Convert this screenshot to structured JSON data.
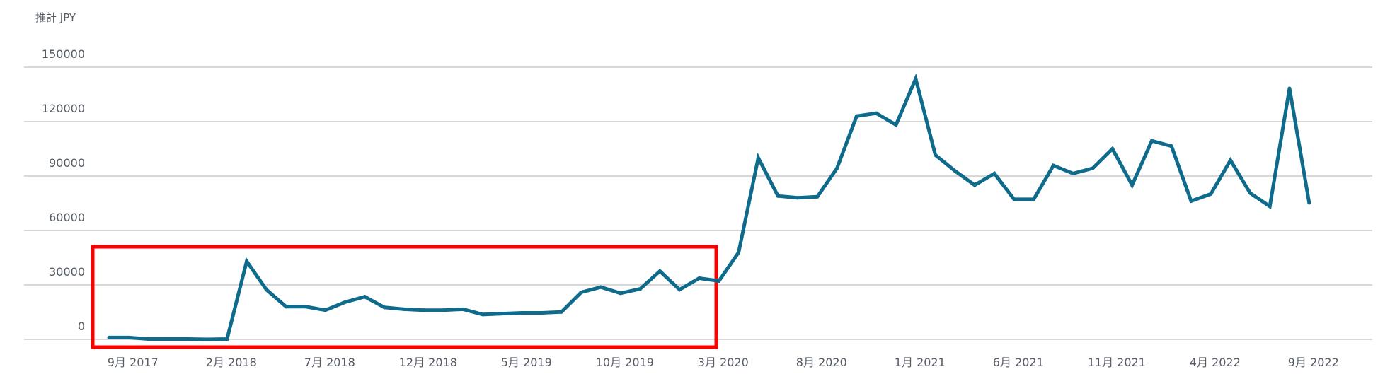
{
  "chart_data": {
    "type": "line",
    "title": "",
    "ylabel": "推計 JPY",
    "xlabel": "",
    "ylim": [
      0,
      150000
    ],
    "yticks": [
      0,
      30000,
      60000,
      90000,
      120000,
      150000
    ],
    "ytick_labels": [
      "0",
      "30000",
      "60000",
      "90000",
      "120000",
      "150000"
    ],
    "grid": "horizontal",
    "x_start": "2017-08",
    "x_tick_labels": [
      "9月 2017",
      "2月 2018",
      "7月 2018",
      "12月 2018",
      "5月 2019",
      "10月 2019",
      "3月 2020",
      "8月 2020",
      "1月 2021",
      "6月 2021",
      "11月 2021",
      "4月 2022",
      "9月 2022"
    ],
    "x_tick_every_months": 5,
    "x_tick_first_index": 1,
    "series": [
      {
        "name": "推計 JPY",
        "color": "#0f6b8b",
        "values": [
          1000,
          1000,
          200,
          200,
          200,
          0,
          200,
          43000,
          27400,
          18000,
          18000,
          16100,
          20500,
          23500,
          17600,
          16600,
          16100,
          16100,
          16600,
          13700,
          14200,
          14600,
          14600,
          15100,
          25900,
          28800,
          25400,
          27800,
          37600,
          27400,
          33700,
          32200,
          47900,
          100000,
          79000,
          78000,
          78600,
          94300,
          123000,
          124600,
          118200,
          143600,
          101600,
          92800,
          85000,
          91400,
          77200,
          77200,
          95800,
          91400,
          94300,
          105000,
          85000,
          109400,
          106500,
          76200,
          80100,
          98700,
          80600,
          73300,
          138300,
          75200
        ]
      }
    ],
    "annotation": {
      "type": "highlight-box",
      "color": "#ff0000",
      "from_month": "2017-08",
      "to_month": "2020-03"
    }
  }
}
